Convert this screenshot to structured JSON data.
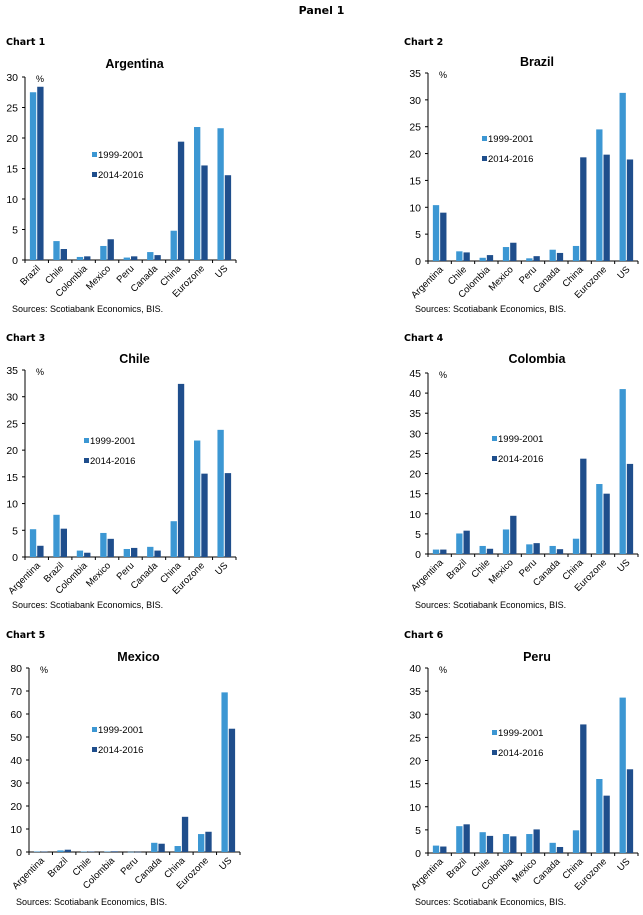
{
  "panel": {
    "title": "Panel 1"
  },
  "series_names": [
    "1999-2001",
    "2014-2016"
  ],
  "colors": {
    "series1": "#3C97D3",
    "series2": "#1F4E8C",
    "axis": "#000000"
  },
  "chart_data": [
    {
      "label": "Chart 1",
      "type": "bar",
      "title": "Argentina",
      "ylabel": "%",
      "xlabel": "",
      "ylim": [
        0,
        30
      ],
      "yticks": [
        0,
        5,
        10,
        15,
        20,
        25,
        30
      ],
      "categories": [
        "Brazil",
        "Chile",
        "Colombia",
        "Mexico",
        "Peru",
        "Canada",
        "China",
        "Eurozone",
        "US"
      ],
      "series": [
        {
          "name": "1999-2001",
          "values": [
            27.5,
            3.1,
            0.5,
            2.3,
            0.4,
            1.3,
            4.8,
            21.8,
            21.6
          ]
        },
        {
          "name": "2014-2016",
          "values": [
            28.4,
            1.8,
            0.6,
            3.4,
            0.6,
            0.8,
            19.4,
            15.5,
            13.9
          ]
        }
      ],
      "legend_position": "center",
      "grid": false,
      "source": "Sources: Scotiabank Economics, BIS."
    },
    {
      "label": "Chart 2",
      "type": "bar",
      "title": "Brazil",
      "ylabel": "%",
      "xlabel": "",
      "ylim": [
        0,
        35
      ],
      "yticks": [
        0,
        5,
        10,
        15,
        20,
        25,
        30,
        35
      ],
      "categories": [
        "Argentina",
        "Chile",
        "Colombia",
        "Mexico",
        "Peru",
        "Canada",
        "China",
        "Eurozone",
        "US"
      ],
      "series": [
        {
          "name": "1999-2001",
          "values": [
            10.4,
            1.8,
            0.6,
            2.6,
            0.5,
            2.1,
            2.8,
            24.5,
            31.3
          ]
        },
        {
          "name": "2014-2016",
          "values": [
            9.0,
            1.6,
            1.1,
            3.4,
            0.9,
            1.5,
            19.3,
            19.8,
            18.9
          ]
        }
      ],
      "legend_position": "center",
      "grid": false,
      "source": "Sources: Scotiabank Economics, BIS."
    },
    {
      "label": "Chart 3",
      "type": "bar",
      "title": "Chile",
      "ylabel": "%",
      "xlabel": "",
      "ylim": [
        0,
        35
      ],
      "yticks": [
        0,
        5,
        10,
        15,
        20,
        25,
        30,
        35
      ],
      "categories": [
        "Argentina",
        "Brazil",
        "Colombia",
        "Mexico",
        "Peru",
        "Canada",
        "China",
        "Eurozone",
        "US"
      ],
      "series": [
        {
          "name": "1999-2001",
          "values": [
            5.2,
            7.9,
            1.2,
            4.5,
            1.5,
            1.9,
            6.7,
            21.8,
            23.8
          ]
        },
        {
          "name": "2014-2016",
          "values": [
            2.1,
            5.3,
            0.8,
            3.4,
            1.7,
            1.2,
            32.4,
            15.6,
            15.7
          ]
        }
      ],
      "legend_position": "center",
      "grid": false,
      "source": "Sources: Scotiabank Economics, BIS."
    },
    {
      "label": "Chart 4",
      "type": "bar",
      "title": "Colombia",
      "ylabel": "%",
      "xlabel": "",
      "ylim": [
        0,
        45
      ],
      "yticks": [
        0,
        5,
        10,
        15,
        20,
        25,
        30,
        35,
        40,
        45
      ],
      "categories": [
        "Argentina",
        "Brazil",
        "Chile",
        "Mexico",
        "Peru",
        "Canada",
        "China",
        "Eurozone",
        "US"
      ],
      "series": [
        {
          "name": "1999-2001",
          "values": [
            1.1,
            5.1,
            2.0,
            6.1,
            2.4,
            2.0,
            3.8,
            17.4,
            41.0
          ]
        },
        {
          "name": "2014-2016",
          "values": [
            1.1,
            5.8,
            1.3,
            9.5,
            2.7,
            1.2,
            23.7,
            15.0,
            22.4
          ]
        }
      ],
      "legend_position": "center",
      "grid": false,
      "source": "Sources: Scotiabank Economics, BIS."
    },
    {
      "label": "Chart 5",
      "type": "bar",
      "title": "Mexico",
      "ylabel": "%",
      "xlabel": "",
      "ylim": [
        0,
        80
      ],
      "yticks": [
        0,
        10,
        20,
        30,
        40,
        50,
        60,
        70,
        80
      ],
      "categories": [
        "Argentina",
        "Brazil",
        "Chile",
        "Colombia",
        "Peru",
        "Canada",
        "China",
        "Eurozone",
        "US"
      ],
      "series": [
        {
          "name": "1999-2001",
          "values": [
            0.2,
            0.7,
            0.2,
            0.2,
            0.1,
            4.0,
            2.6,
            7.8,
            69.4
          ]
        },
        {
          "name": "2014-2016",
          "values": [
            0.2,
            1.0,
            0.2,
            0.3,
            0.1,
            3.6,
            15.3,
            8.8,
            53.6
          ]
        }
      ],
      "legend_position": "center",
      "grid": false,
      "source": "Sources: Scotiabank Economics, BIS."
    },
    {
      "label": "Chart 6",
      "type": "bar",
      "title": "Peru",
      "ylabel": "%",
      "xlabel": "",
      "ylim": [
        0,
        40
      ],
      "yticks": [
        0,
        5,
        10,
        15,
        20,
        25,
        30,
        35,
        40
      ],
      "categories": [
        "Argentina",
        "Brazil",
        "Chile",
        "Colombia",
        "Mexico",
        "Canada",
        "China",
        "Eurozone",
        "US"
      ],
      "series": [
        {
          "name": "1999-2001",
          "values": [
            1.6,
            5.8,
            4.5,
            4.1,
            4.1,
            2.2,
            4.9,
            16.0,
            33.6
          ]
        },
        {
          "name": "2014-2016",
          "values": [
            1.4,
            6.2,
            3.7,
            3.6,
            5.1,
            1.3,
            27.8,
            12.4,
            18.1
          ]
        }
      ],
      "legend_position": "center",
      "grid": false,
      "source": "Sources: Scotiabank Economics, BIS."
    }
  ]
}
